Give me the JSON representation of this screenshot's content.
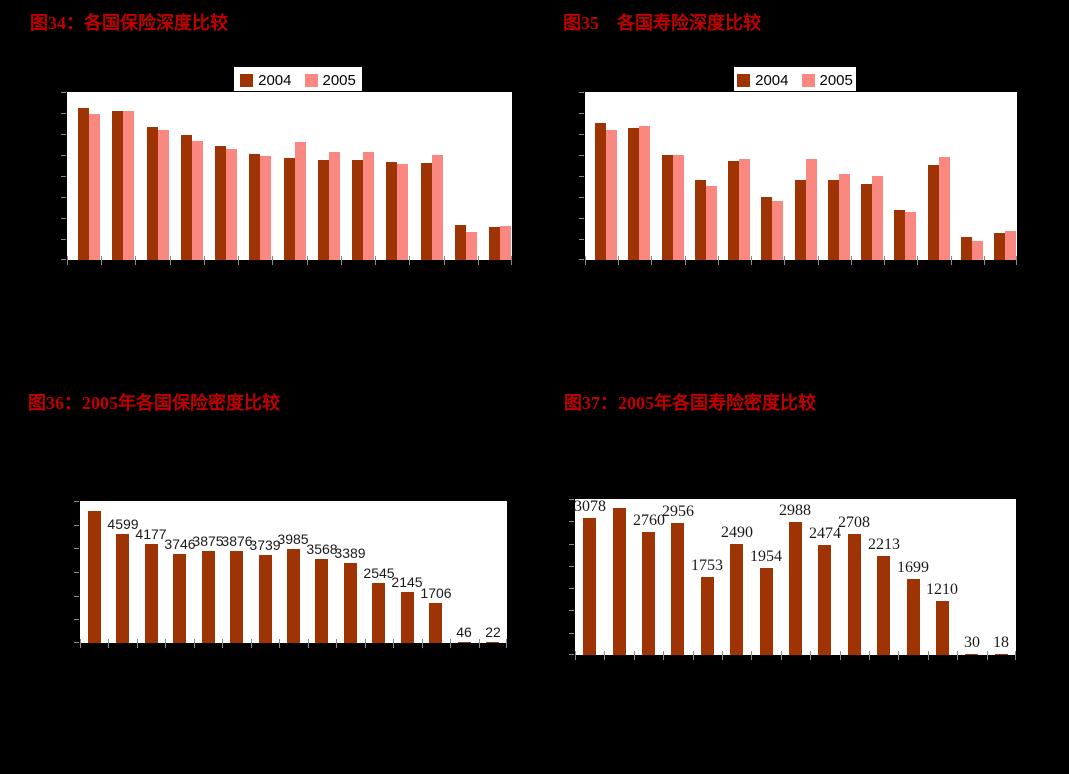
{
  "colors": {
    "page_background": "#000000",
    "plot_background": "#FFFFFF",
    "plot_border": "#000000",
    "title_red": "#BE0000",
    "bar_2004_dark_red": "#9E3404",
    "bar_2005_pink": "#FB8781",
    "tick_gray": "#8A8A8A",
    "data_label_text": "#1A1A1A",
    "legend_text": "#000000"
  },
  "chart_data": [
    {
      "id": "fig34",
      "type": "bar",
      "title": "图34：各国保险深度比较",
      "legend_position": "top",
      "grid": false,
      "categories_count": 13,
      "category_labels_visible": false,
      "y_axis_labels_visible": false,
      "ylim": [
        0,
        16
      ],
      "ystep": 2,
      "values_estimated_from_pixels": true,
      "series": [
        {
          "name": "2004",
          "color": "#9E3404",
          "values": [
            14.5,
            14.2,
            12.7,
            11.9,
            10.9,
            10.1,
            9.7,
            9.5,
            9.5,
            9.3,
            9.2,
            3.3,
            3.1
          ]
        },
        {
          "name": "2005",
          "color": "#FB8781",
          "values": [
            13.9,
            14.2,
            12.4,
            11.3,
            10.6,
            9.9,
            11.2,
            10.3,
            10.3,
            9.1,
            10.0,
            2.7,
            3.2
          ]
        }
      ]
    },
    {
      "id": "fig35",
      "type": "bar",
      "title": "图35　各国寿险深度比较",
      "legend_position": "top",
      "grid": false,
      "categories_count": 13,
      "category_labels_visible": false,
      "y_axis_labels_visible": false,
      "ylim": [
        0,
        8
      ],
      "ystep": 1,
      "values_estimated_from_pixels": true,
      "series": [
        {
          "name": "2004",
          "color": "#9E3404",
          "values": [
            6.5,
            6.3,
            5.0,
            3.8,
            4.7,
            3.0,
            3.8,
            3.8,
            3.6,
            2.4,
            4.5,
            1.1,
            1.3
          ]
        },
        {
          "name": "2005",
          "color": "#FB8781",
          "values": [
            6.2,
            6.4,
            5.0,
            3.5,
            4.8,
            2.8,
            4.8,
            4.1,
            4.0,
            2.3,
            4.9,
            0.9,
            1.4
          ]
        }
      ]
    },
    {
      "id": "fig36",
      "type": "bar",
      "title": "图36：2005年各国保险密度比较",
      "grid": false,
      "categories_count": 15,
      "category_labels_visible": false,
      "y_axis_labels_visible": false,
      "ylim": [
        0,
        6000
      ],
      "ystep": 1000,
      "estimated_indices": [
        0
      ],
      "series": [
        {
          "name": "2005",
          "color": "#9E3404",
          "values": [
            5558,
            4599,
            4177,
            3746,
            3875,
            3876,
            3739,
            3985,
            3568,
            3389,
            2545,
            2145,
            1706,
            46,
            22
          ]
        }
      ],
      "data_labels": [
        "",
        "4599",
        "4177",
        "3746",
        "3875",
        "3876",
        "3739",
        "3985",
        "3568",
        "3389",
        "2545",
        "2145",
        "1706",
        "46",
        "22"
      ]
    },
    {
      "id": "fig37",
      "type": "bar",
      "title": "图37：2005年各国寿险密度比较",
      "grid": false,
      "categories_count": 15,
      "category_labels_visible": false,
      "y_axis_labels_visible": false,
      "ylim": [
        0,
        3500
      ],
      "ystep": 500,
      "estimated_indices": [
        1
      ],
      "series": [
        {
          "name": "2005",
          "color": "#9E3404",
          "values": [
            3078,
            3287,
            2760,
            2956,
            1753,
            2490,
            1954,
            2988,
            2474,
            2708,
            2213,
            1699,
            1210,
            30,
            18
          ]
        }
      ],
      "data_labels": [
        "3078",
        "",
        "2760",
        "2956",
        "1753",
        "2490",
        "1954",
        "2988",
        "2474",
        "2708",
        "2213",
        "1699",
        "1210",
        "30",
        "18"
      ]
    }
  ]
}
